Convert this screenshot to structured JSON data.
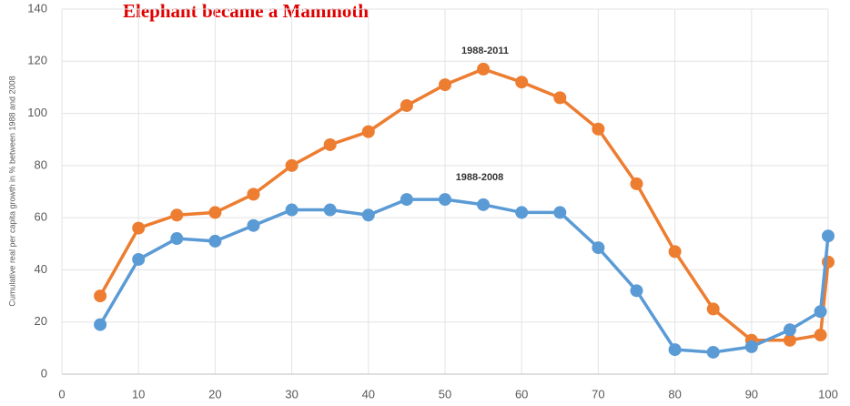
{
  "chart_data": {
    "type": "line",
    "title": "Elephant became a Mammoth",
    "ylabel": "Cumulative real per capita growth in % between 1988 and 2008",
    "x": [
      5,
      10,
      15,
      20,
      25,
      30,
      35,
      40,
      45,
      50,
      55,
      60,
      65,
      70,
      75,
      80,
      85,
      90,
      95,
      99,
      100
    ],
    "series": [
      {
        "name": "1988-2011",
        "color": "#ed7d31",
        "values": [
          30,
          56,
          61,
          62,
          69,
          80,
          88,
          93,
          103,
          111,
          117,
          112,
          106,
          94,
          73,
          47,
          25,
          13,
          13,
          15,
          43
        ]
      },
      {
        "name": "1988-2008",
        "color": "#5b9bd5",
        "values": [
          19,
          44,
          52,
          51,
          57,
          63,
          63,
          61,
          67,
          67,
          65,
          62,
          62,
          48.5,
          32,
          9.4,
          8.4,
          10.5,
          17,
          24,
          53
        ]
      }
    ],
    "xlim": [
      0,
      100
    ],
    "xticks": [
      0,
      10,
      20,
      30,
      40,
      50,
      60,
      70,
      80,
      90,
      100
    ],
    "ylim": [
      0,
      140
    ],
    "yticks": [
      0,
      20,
      40,
      60,
      80,
      100,
      120,
      140
    ],
    "grid": true
  }
}
